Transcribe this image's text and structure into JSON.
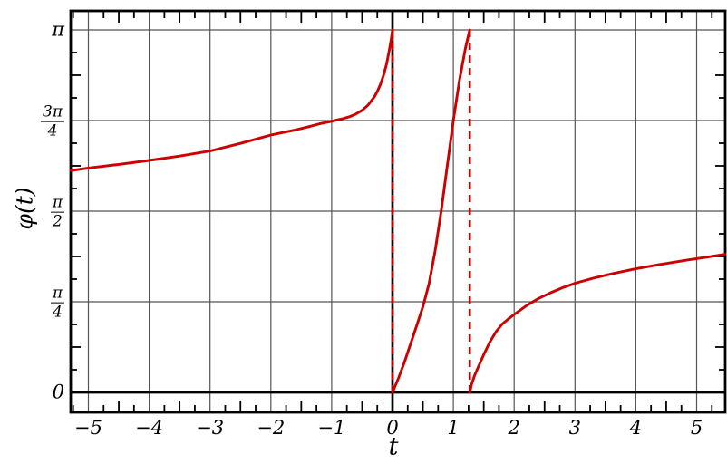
{
  "chart_data": {
    "type": "line",
    "title": "",
    "xlabel": "t",
    "ylabel": "φ(t)",
    "x_range": [
      -5.29,
      5.47
    ],
    "y_range_units_of_pi": [
      0,
      1
    ],
    "grid": true,
    "legend": false,
    "colors": {
      "curve": "#cc0000",
      "grid": "#555555",
      "axis": "#000000",
      "frame": "#000000",
      "background": "#ffffff",
      "text": "#000000"
    },
    "x_ticks": [
      {
        "label": "−5",
        "value": -5
      },
      {
        "label": "−4",
        "value": -4
      },
      {
        "label": "−3",
        "value": -3
      },
      {
        "label": "−2",
        "value": -2
      },
      {
        "label": "−1",
        "value": -1
      },
      {
        "label": "0",
        "value": 0
      },
      {
        "label": "1",
        "value": 1
      },
      {
        "label": "2",
        "value": 2
      },
      {
        "label": "3",
        "value": 3
      },
      {
        "label": "4",
        "value": 4
      },
      {
        "label": "5",
        "value": 5
      }
    ],
    "y_ticks": [
      {
        "label": "0",
        "value": 0
      },
      {
        "num": "π",
        "den": "4",
        "value": 0.25
      },
      {
        "num": "π",
        "den": "2",
        "value": 0.5
      },
      {
        "num": "3π",
        "den": "4",
        "value": 0.75
      },
      {
        "label": "π",
        "value": 1
      }
    ],
    "x_minor_tick_step": 0.25,
    "y_minor_tick_step_units_of_pi": 0.0625,
    "series": [
      {
        "name": "phase-branch-left",
        "style": "solid",
        "points": [
          [
            -5.29,
            0.612
          ],
          [
            -5.0,
            0.619
          ],
          [
            -4.5,
            0.629
          ],
          [
            -4.0,
            0.64
          ],
          [
            -3.5,
            0.652
          ],
          [
            -3.0,
            0.666
          ],
          [
            -2.5,
            0.687
          ],
          [
            -2.0,
            0.71
          ],
          [
            -1.8,
            0.717
          ],
          [
            -1.6,
            0.724
          ],
          [
            -1.4,
            0.732
          ],
          [
            -1.2,
            0.741
          ],
          [
            -1.0,
            0.748
          ],
          [
            -0.9,
            0.752
          ],
          [
            -0.8,
            0.756
          ],
          [
            -0.7,
            0.761
          ],
          [
            -0.6,
            0.768
          ],
          [
            -0.5,
            0.778
          ],
          [
            -0.4,
            0.793
          ],
          [
            -0.3,
            0.815
          ],
          [
            -0.25,
            0.83
          ],
          [
            -0.2,
            0.849
          ],
          [
            -0.15,
            0.873
          ],
          [
            -0.1,
            0.904
          ],
          [
            -0.05,
            0.946
          ],
          [
            -0.02,
            0.976
          ],
          [
            0,
            1.0
          ]
        ]
      },
      {
        "name": "phase-branch-middle",
        "style": "solid",
        "points": [
          [
            0,
            0
          ],
          [
            0.1,
            0.04
          ],
          [
            0.2,
            0.085
          ],
          [
            0.3,
            0.135
          ],
          [
            0.4,
            0.185
          ],
          [
            0.5,
            0.237
          ],
          [
            0.6,
            0.3
          ],
          [
            0.7,
            0.39
          ],
          [
            0.8,
            0.5
          ],
          [
            0.9,
            0.625
          ],
          [
            1.0,
            0.75
          ],
          [
            1.1,
            0.86
          ],
          [
            1.2,
            0.95
          ],
          [
            1.27,
            1.0
          ]
        ]
      },
      {
        "name": "phase-branch-right",
        "style": "solid",
        "points": [
          [
            1.27,
            0
          ],
          [
            1.3,
            0.022
          ],
          [
            1.35,
            0.047
          ],
          [
            1.4,
            0.066
          ],
          [
            1.5,
            0.104
          ],
          [
            1.6,
            0.139
          ],
          [
            1.7,
            0.167
          ],
          [
            1.8,
            0.188
          ],
          [
            1.9,
            0.202
          ],
          [
            2.0,
            0.215
          ],
          [
            2.2,
            0.239
          ],
          [
            2.4,
            0.259
          ],
          [
            2.6,
            0.275
          ],
          [
            2.8,
            0.289
          ],
          [
            3.0,
            0.301
          ],
          [
            3.3,
            0.315
          ],
          [
            3.6,
            0.327
          ],
          [
            4.0,
            0.341
          ],
          [
            4.4,
            0.353
          ],
          [
            4.8,
            0.364
          ],
          [
            5.0,
            0.369
          ],
          [
            5.2,
            0.374
          ],
          [
            5.47,
            0.381
          ]
        ]
      }
    ],
    "discontinuities": [
      {
        "name": "jump-at-t-0",
        "t": 0,
        "from": 0,
        "to": 1,
        "style": "dashed"
      },
      {
        "name": "jump-at-t-1.27",
        "t": 1.27,
        "from": 0,
        "to": 1,
        "style": "dashed"
      }
    ]
  }
}
